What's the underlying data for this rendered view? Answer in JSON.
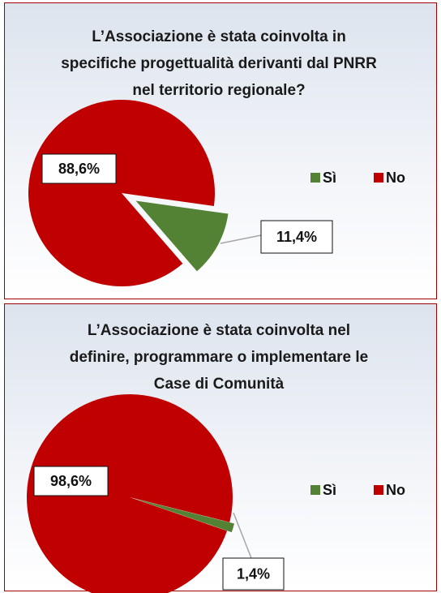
{
  "chart_data": [
    {
      "type": "pie",
      "title": "L’Associazione è stata coinvolta in specifiche progettualità derivanti dal PNRR nel territorio regionale?",
      "categories": [
        "Sì",
        "No"
      ],
      "values": [
        11.4,
        88.6
      ],
      "value_labels": [
        "11,4%",
        "88,6%"
      ],
      "colors": [
        "#548235",
        "#c00000"
      ],
      "legend": "right"
    },
    {
      "type": "pie",
      "title": "L’Associazione è stata coinvolta nel definire, programmare o implementare le Case di Comunità",
      "categories": [
        "Sì",
        "No"
      ],
      "values": [
        1.4,
        98.6
      ],
      "value_labels": [
        "1,4%",
        "98,6%"
      ],
      "colors": [
        "#548235",
        "#c00000"
      ],
      "legend": "right"
    }
  ]
}
